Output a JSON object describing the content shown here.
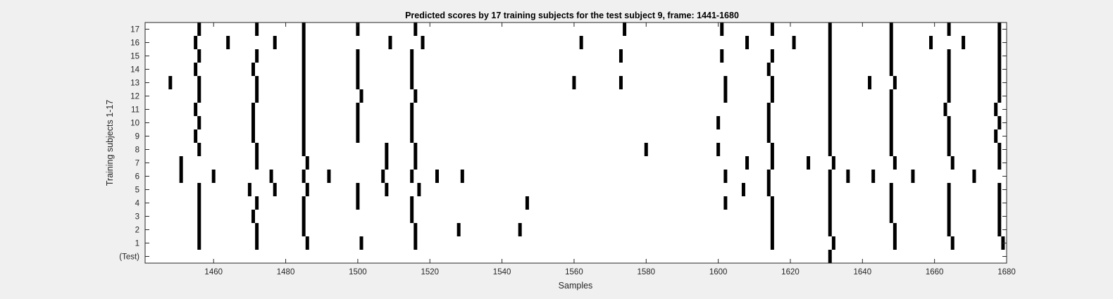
{
  "chart_data": {
    "type": "heatmap",
    "title": "Predicted scores by 17 training subjects for the test subject 9, frame: 1441-1680",
    "xlabel": "Samples",
    "ylabel": "Training subjects 1-17",
    "xlim": [
      1441,
      1680
    ],
    "x_ticks": [
      1460,
      1480,
      1500,
      1520,
      1540,
      1560,
      1580,
      1600,
      1620,
      1640,
      1660,
      1680
    ],
    "y_ticks": [
      "(Test)",
      "1",
      "2",
      "3",
      "4",
      "5",
      "6",
      "7",
      "8",
      "9",
      "10",
      "11",
      "12",
      "13",
      "14",
      "15",
      "16",
      "17"
    ],
    "grid": false,
    "legend": "none",
    "colors": {
      "background": "#ffffff",
      "mark": "#000000",
      "figure": "#f0f0f0"
    },
    "rows": [
      {
        "label": "(Test)",
        "positions": [
          1631
        ]
      },
      {
        "label": "1",
        "positions": [
          1456,
          1472,
          1486,
          1501,
          1516,
          1615,
          1632,
          1649,
          1665,
          1679
        ]
      },
      {
        "label": "2",
        "positions": [
          1456,
          1472,
          1485,
          1516,
          1528,
          1545,
          1615,
          1631,
          1649,
          1664,
          1678
        ]
      },
      {
        "label": "3",
        "positions": [
          1456,
          1471,
          1485,
          1515,
          1615,
          1631,
          1648,
          1664,
          1678
        ]
      },
      {
        "label": "4",
        "positions": [
          1456,
          1472,
          1485,
          1500,
          1515,
          1547,
          1602,
          1615,
          1631,
          1648,
          1664,
          1678
        ]
      },
      {
        "label": "5",
        "positions": [
          1456,
          1470,
          1477,
          1486,
          1500,
          1508,
          1517,
          1607,
          1614,
          1631,
          1648,
          1664,
          1678
        ]
      },
      {
        "label": "6",
        "positions": [
          1451,
          1460,
          1476,
          1485,
          1492,
          1507,
          1515,
          1522,
          1529,
          1602,
          1614,
          1631,
          1636,
          1643,
          1654,
          1671
        ]
      },
      {
        "label": "7",
        "positions": [
          1451,
          1472,
          1486,
          1508,
          1516,
          1608,
          1615,
          1625,
          1632,
          1649,
          1665,
          1678
        ]
      },
      {
        "label": "8",
        "positions": [
          1456,
          1472,
          1485,
          1508,
          1516,
          1580,
          1600,
          1615,
          1631,
          1648,
          1664,
          1678
        ]
      },
      {
        "label": "9",
        "positions": [
          1455,
          1471,
          1485,
          1500,
          1515,
          1614,
          1631,
          1648,
          1664,
          1677
        ]
      },
      {
        "label": "10",
        "positions": [
          1456,
          1471,
          1485,
          1500,
          1515,
          1600,
          1614,
          1631,
          1648,
          1664,
          1678
        ]
      },
      {
        "label": "11",
        "positions": [
          1455,
          1471,
          1485,
          1500,
          1515,
          1614,
          1631,
          1648,
          1663,
          1677
        ]
      },
      {
        "label": "12",
        "positions": [
          1456,
          1472,
          1485,
          1501,
          1516,
          1602,
          1615,
          1631,
          1648,
          1664,
          1678
        ]
      },
      {
        "label": "13",
        "positions": [
          1448,
          1456,
          1472,
          1485,
          1500,
          1515,
          1560,
          1573,
          1602,
          1615,
          1631,
          1642,
          1649,
          1664,
          1678
        ]
      },
      {
        "label": "14",
        "positions": [
          1455,
          1471,
          1485,
          1500,
          1515,
          1614,
          1631,
          1648,
          1664,
          1678
        ]
      },
      {
        "label": "15",
        "positions": [
          1456,
          1472,
          1485,
          1500,
          1515,
          1573,
          1601,
          1615,
          1631,
          1648,
          1664,
          1678
        ]
      },
      {
        "label": "16",
        "positions": [
          1455,
          1464,
          1477,
          1485,
          1509,
          1518,
          1562,
          1608,
          1621,
          1631,
          1648,
          1659,
          1668,
          1678
        ]
      },
      {
        "label": "17",
        "positions": [
          1456,
          1472,
          1485,
          1500,
          1516,
          1574,
          1601,
          1615,
          1631,
          1648,
          1664,
          1678
        ]
      }
    ]
  }
}
